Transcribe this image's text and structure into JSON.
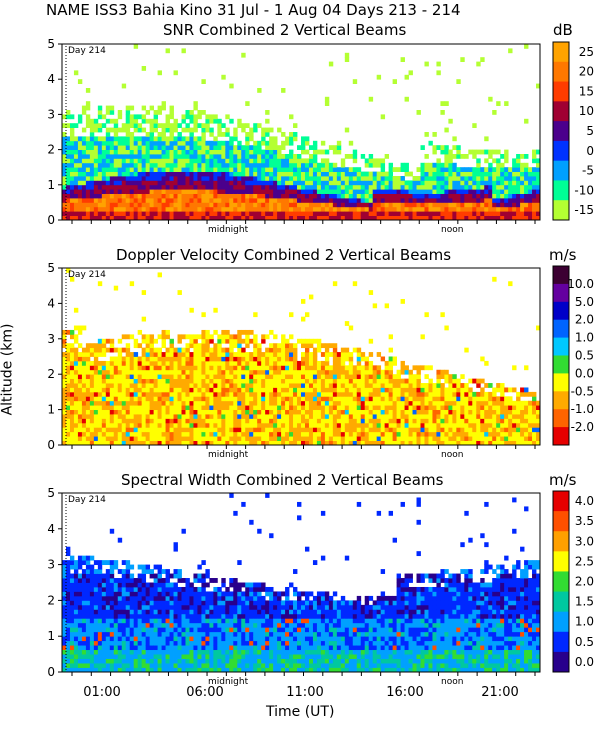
{
  "title": "NAME ISS3 Bahia Kino  31 Jul -  1 Aug 04 Days 213 - 214",
  "y_axis_label": "Altitude (km)",
  "x_axis_label": "Time (UT)",
  "x_ticks": [
    "01:00",
    "06:00",
    "11:00",
    "16:00",
    "21:00"
  ],
  "markers": {
    "midnight": "midnight",
    "noon": "noon",
    "day": "Day 214"
  },
  "chart_data": [
    {
      "type": "heatmap",
      "title": "SNR Combined 2 Vertical Beams",
      "units": "dB",
      "xlabel": "Time (UT)",
      "ylabel": "Altitude (km)",
      "ylim": [
        0,
        5
      ],
      "y_ticks": [
        "0",
        "1",
        "2",
        "3",
        "4",
        "5"
      ],
      "colorbar_ticks": [
        "25",
        "20",
        "15",
        "10",
        "5",
        "0",
        "-5",
        "-10",
        "-15"
      ],
      "colors": [
        "#ffa300",
        "#ff7800",
        "#ff3c00",
        "#a00032",
        "#4b008c",
        "#0032ff",
        "#00a0ff",
        "#00ff96",
        "#b4ff32"
      ]
    },
    {
      "type": "heatmap",
      "title": "Doppler Velocity Combined 2 Vertical Beams",
      "units": "m/s",
      "xlabel": "Time (UT)",
      "ylabel": "Altitude (km)",
      "ylim": [
        0,
        5
      ],
      "y_ticks": [
        "0",
        "1",
        "2",
        "3",
        "4",
        "5"
      ],
      "colorbar_ticks": [
        "10.0",
        "5.0",
        "2.0",
        "1.0",
        "0.5",
        "0.0",
        "-0.5",
        "-1.0",
        "-2.0"
      ],
      "colors": [
        "#3c0032",
        "#6400a0",
        "#0000c8",
        "#0064ff",
        "#00c8ff",
        "#32dc32",
        "#ffff00",
        "#ffaa00",
        "#ff6400",
        "#e60000"
      ]
    },
    {
      "type": "heatmap",
      "title": "Spectral Width Combined 2 Vertical Beams",
      "units": "m/s",
      "xlabel": "Time (UT)",
      "ylabel": "Altitude (km)",
      "ylim": [
        0,
        5
      ],
      "y_ticks": [
        "0",
        "1",
        "2",
        "3",
        "4",
        "5"
      ],
      "colorbar_ticks": [
        "4.0",
        "3.5",
        "3.0",
        "2.5",
        "2.0",
        "1.5",
        "1.0",
        "0.5",
        "0.0"
      ],
      "colors": [
        "#e60000",
        "#ff5000",
        "#ffa000",
        "#ffff00",
        "#32dc32",
        "#00c8a0",
        "#00a0ff",
        "#0028ff",
        "#28008c"
      ]
    }
  ]
}
